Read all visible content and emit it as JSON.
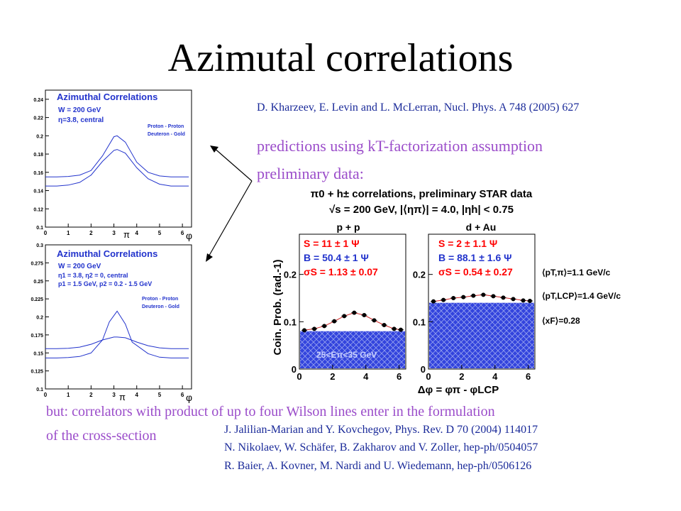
{
  "slide": {
    "title": "Azimutal correlations",
    "ref_top": "D. Kharzeev, E. Levin and L. McLerran, Nucl. Phys. A 748 (2005) 627",
    "prediction_text": "predictions using kT-factorization assumption",
    "preliminary_text": "preliminary data:",
    "footer_line1": "but: correlators with product of up to four Wilson lines enter in the formulation",
    "footer_line2": "of the cross-section",
    "refs": [
      "J. Jalilian-Marian and Y. Kovchegov, Phys. Rev. D 70 (2004) 114017",
      "N. Nikolaev, W. Schäfer, B. Zakharov and V. Zoller, hep-ph/0504057",
      "R. Baier, A. Kovner, M. Nardi and U. Wiedemann, hep-ph/0506126"
    ]
  },
  "colors": {
    "text_purple": "#9b4dca",
    "ref_blue": "#1a2a99",
    "plot_blue": "#2233cc",
    "fill_blue": "#3344dd",
    "red": "#ff0000"
  },
  "chart_data": [
    {
      "type": "line",
      "title": "Azimuthal Correlations",
      "annotations": [
        "W = 200 GeV",
        "η=3.8, central"
      ],
      "xlabel": "φ",
      "x_ticks": [
        "0",
        "1",
        "2",
        "3",
        "4",
        "5",
        "6"
      ],
      "pi_label": "π",
      "y_ticks": [
        "0.1",
        "0.12",
        "0.14",
        "0.16",
        "0.18",
        "0.2",
        "0.22",
        "0.24"
      ],
      "xlim": [
        0,
        6.4
      ],
      "ylim": [
        0.1,
        0.25
      ],
      "series": [
        {
          "name": "Proton - Proton",
          "x": [
            0,
            0.5,
            1,
            1.5,
            2,
            2.5,
            3,
            3.1416,
            3.5,
            4,
            4.5,
            5,
            5.5,
            6,
            6.28
          ],
          "y": [
            0.155,
            0.155,
            0.1555,
            0.157,
            0.162,
            0.178,
            0.199,
            0.2,
            0.193,
            0.171,
            0.16,
            0.156,
            0.155,
            0.155,
            0.155
          ]
        },
        {
          "name": "Deuteron - Gold",
          "x": [
            0,
            0.5,
            1,
            1.5,
            2,
            2.5,
            3,
            3.1416,
            3.5,
            4,
            4.5,
            5,
            5.5,
            6,
            6.28
          ],
          "y": [
            0.145,
            0.145,
            0.146,
            0.149,
            0.157,
            0.172,
            0.184,
            0.185,
            0.181,
            0.165,
            0.153,
            0.147,
            0.145,
            0.145,
            0.145
          ]
        }
      ]
    },
    {
      "type": "line",
      "title": "Azimuthal Correlations",
      "annotations": [
        "W = 200 GeV",
        "η1 = 3.8, η2 = 0, central",
        "p1 = 1.5 GeV, p2 = 0.2 - 1.5 GeV"
      ],
      "xlabel": "φ",
      "x_ticks": [
        "0",
        "1",
        "2",
        "3",
        "4",
        "5",
        "6"
      ],
      "pi_label": "π",
      "y_ticks": [
        "0.1",
        "0.125",
        "0.15",
        "0.175",
        "0.2",
        "0.225",
        "0.25",
        "0.275",
        "0.3"
      ],
      "xlim": [
        0,
        6.4
      ],
      "ylim": [
        0.1,
        0.3
      ],
      "series": [
        {
          "name": "Proton - Proton",
          "x": [
            0,
            0.5,
            1,
            1.5,
            2,
            2.5,
            2.8,
            3.1416,
            3.5,
            3.8,
            4.5,
            5,
            5.5,
            6,
            6.28
          ],
          "y": [
            0.143,
            0.143,
            0.1435,
            0.145,
            0.15,
            0.168,
            0.193,
            0.208,
            0.19,
            0.165,
            0.149,
            0.144,
            0.143,
            0.143,
            0.143
          ]
        },
        {
          "name": "Deuteron - Gold",
          "x": [
            0,
            0.5,
            1,
            1.5,
            2,
            2.5,
            3,
            3.1416,
            3.5,
            4,
            4.5,
            5,
            5.5,
            6,
            6.28
          ],
          "y": [
            0.156,
            0.156,
            0.1565,
            0.158,
            0.162,
            0.168,
            0.172,
            0.172,
            0.171,
            0.165,
            0.16,
            0.157,
            0.156,
            0.156,
            0.156
          ]
        }
      ]
    },
    {
      "type": "scatter",
      "title": "π0 + h± correlations, preliminary STAR data",
      "subtitle": "√s = 200 GeV, |⟨ηπ⟩| = 4.0, |ηh| < 0.75",
      "ylabel": "Coin. Prob. (rad.-1)",
      "xlabel": "Δφ = φπ - φLCP",
      "x_ticks": [
        "0",
        "2",
        "4",
        "6"
      ],
      "y_ticks": [
        "0",
        "0.1",
        "0.2"
      ],
      "xlim": [
        0,
        6.4
      ],
      "ylim": [
        0,
        0.285
      ],
      "side_labels": [
        "⟨pT,π⟩=1.1 GeV/c",
        "⟨pT,LCP⟩=1.4 GeV/c",
        "⟨xF⟩=0.28"
      ],
      "panels": [
        {
          "name": "p + p",
          "S": "S = 11 ± 1 Ψ",
          "B": "B = 50.4 ± 1 Ψ",
          "sigma": "σS = 1.13 ± 0.07",
          "energy_label": "25<Eπ<35 GeV",
          "pedestal": 0.08,
          "x": [
            0.3,
            0.9,
            1.5,
            2.1,
            2.7,
            3.3,
            3.9,
            4.5,
            5.1,
            5.7,
            6.1
          ],
          "y": [
            0.082,
            0.085,
            0.091,
            0.101,
            0.112,
            0.119,
            0.114,
            0.103,
            0.093,
            0.085,
            0.083
          ]
        },
        {
          "name": "d + Au",
          "S": "S = 2 ± 1.1 Ψ",
          "B": "B = 88.1 ± 1.6 Ψ",
          "sigma": "σS = 0.54 ± 0.27",
          "energy_label": "",
          "pedestal": 0.14,
          "x": [
            0.3,
            0.9,
            1.5,
            2.1,
            2.7,
            3.3,
            3.9,
            4.5,
            5.1,
            5.7,
            6.1
          ],
          "y": [
            0.143,
            0.146,
            0.15,
            0.152,
            0.155,
            0.157,
            0.154,
            0.151,
            0.148,
            0.145,
            0.144
          ]
        }
      ]
    }
  ]
}
